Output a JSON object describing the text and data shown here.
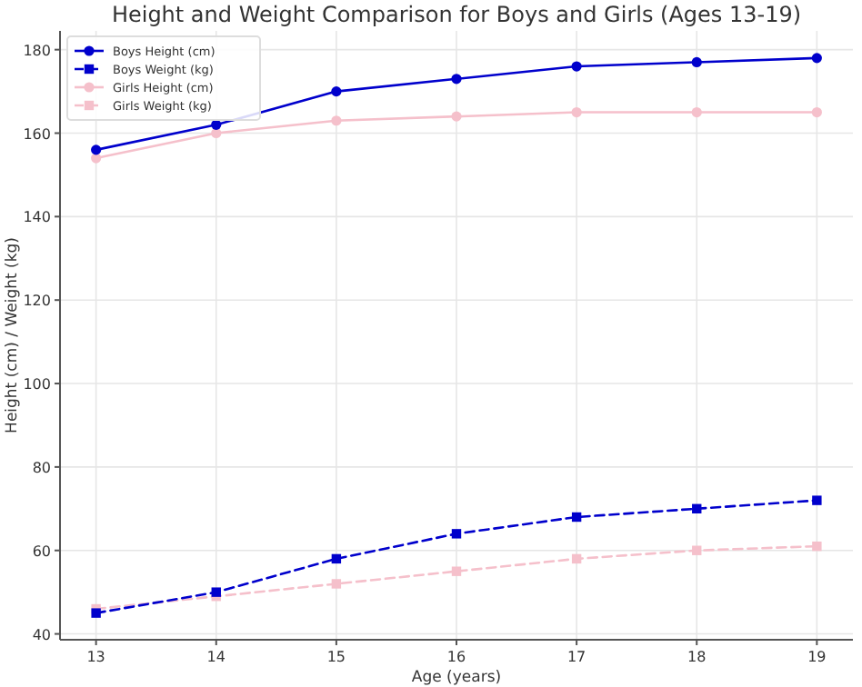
{
  "chart_data": {
    "type": "line",
    "title": "Height and Weight Comparison for Boys and Girls (Ages 13-19)",
    "xlabel": "Age (years)",
    "ylabel": "Height (cm) / Weight (kg)",
    "x": [
      13,
      14,
      15,
      16,
      17,
      18,
      19
    ],
    "series": [
      {
        "name": "Boys Height (cm)",
        "color": "#0000cc",
        "marker": "circle",
        "line_style": "solid",
        "values": [
          156,
          162,
          170,
          173,
          176,
          177,
          178
        ]
      },
      {
        "name": "Boys Weight (kg)",
        "color": "#0000cc",
        "marker": "square",
        "line_style": "dashed",
        "values": [
          45,
          50,
          58,
          64,
          68,
          70,
          72
        ]
      },
      {
        "name": "Girls Height (cm)",
        "color": "#f5c0cb",
        "marker": "circle",
        "line_style": "solid",
        "values": [
          154,
          160,
          163,
          164,
          165,
          165,
          165
        ]
      },
      {
        "name": "Girls Weight (kg)",
        "color": "#f5c0cb",
        "marker": "square",
        "line_style": "dashed",
        "values": [
          46,
          49,
          52,
          55,
          58,
          60,
          61
        ]
      }
    ],
    "xlim": [
      12.7,
      19.3
    ],
    "ylim": [
      38.6,
      184.5
    ],
    "xticks": [
      13,
      14,
      15,
      16,
      17,
      18,
      19
    ],
    "yticks": [
      40,
      60,
      80,
      100,
      120,
      140,
      160,
      180
    ],
    "grid": true,
    "legend": "top left"
  }
}
